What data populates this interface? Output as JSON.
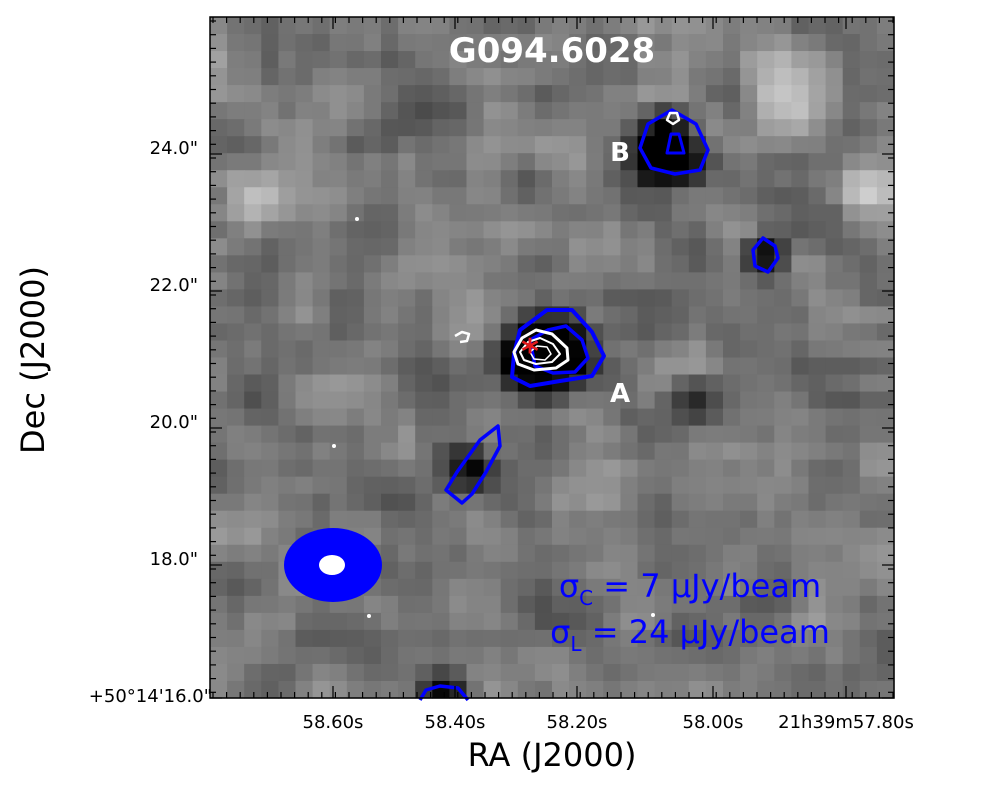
{
  "chart_data": {
    "type": "heatmap",
    "title": "G094.6028",
    "xlabel": "RA (J2000)",
    "ylabel": "Dec (J2000)",
    "x_ticks": [
      "58.60s",
      "58.40s",
      "58.20s",
      "58.00s",
      "21h39m57.80s"
    ],
    "y_ticks": [
      "+50°14'16.0\"",
      "18.0\"",
      "20.0\"",
      "22.0\"",
      "24.0\""
    ],
    "grid": false,
    "colormap": "grayscale",
    "labels": [
      {
        "text": "A"
      },
      {
        "text": "B"
      }
    ],
    "annotations": [
      {
        "text": "σ_C = 7 μJy/beam",
        "display": "σ",
        "sub": "C",
        "rest": " = 7 μJy/beam"
      },
      {
        "text": "σ_L = 24 μJy/beam",
        "display": "σ",
        "sub": "L",
        "rest": " = 24 μJy/beam"
      }
    ],
    "marker": {
      "symbol": "*",
      "color": "#e31a1c",
      "label": "source position"
    },
    "contours": [
      {
        "color": "#0000ff",
        "name": "contour"
      },
      {
        "color": "#ffffff",
        "name": "contour"
      }
    ],
    "beam": {
      "outer_color": "#0000ff",
      "inner_color": "#ffffff"
    }
  }
}
